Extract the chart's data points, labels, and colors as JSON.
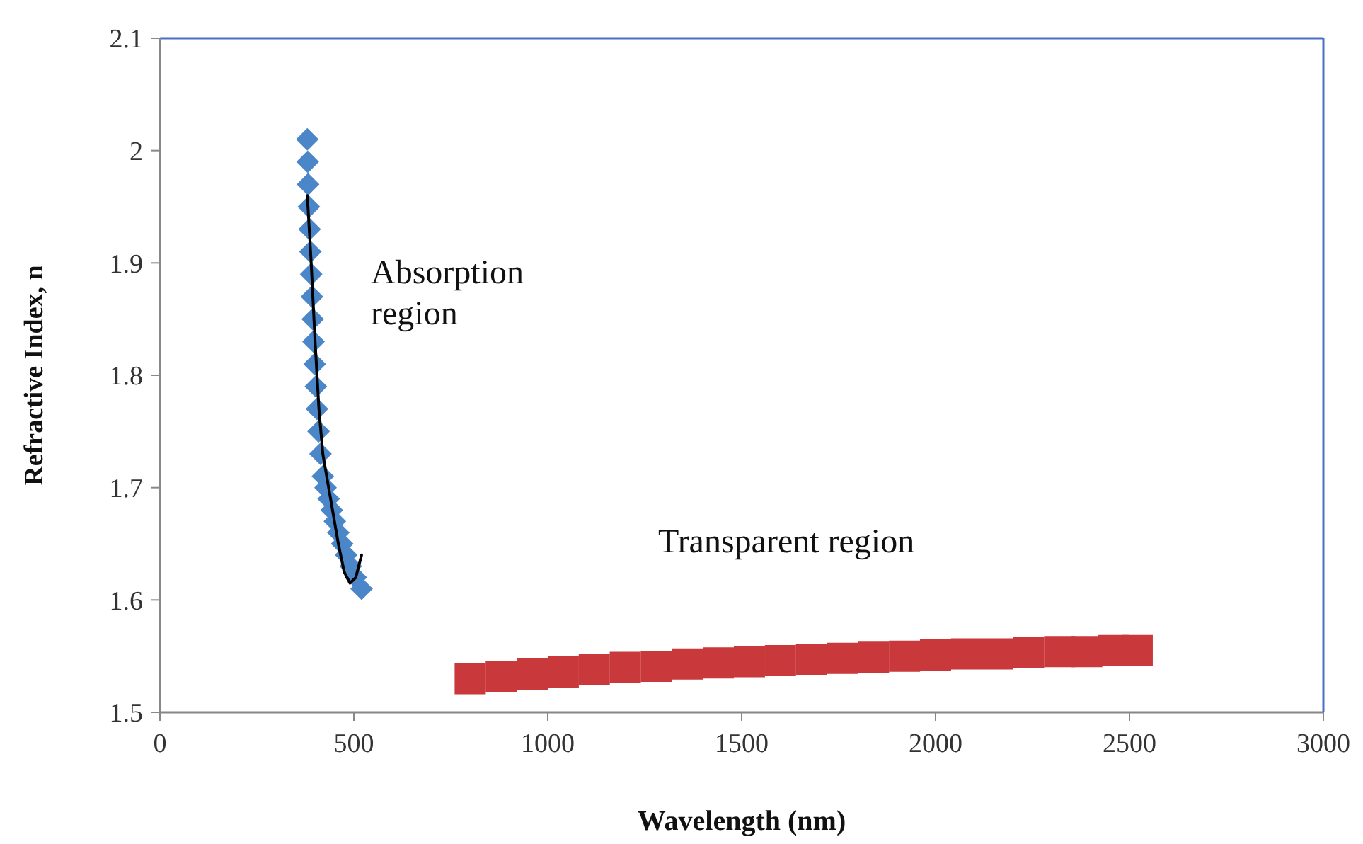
{
  "chart_data": {
    "type": "scatter",
    "xlabel": "Wavelength  (nm)",
    "ylabel": "Refractive  Index,  n",
    "xlim": [
      0,
      3000
    ],
    "xticks": [
      0,
      500,
      1000,
      1500,
      2000,
      2500,
      3000
    ],
    "ylim": [
      1.5,
      2.1
    ],
    "yticks": [
      1.5,
      1.6,
      1.7,
      1.8,
      1.9,
      2,
      2.1
    ],
    "grid": false,
    "annotations": [
      "Absorption region",
      "Transparent region"
    ],
    "series": [
      {
        "marker": "diamond",
        "color": "#4a86c8",
        "x": [
          380,
          381,
          382,
          384,
          386,
          388,
          390,
          392,
          394,
          396,
          399,
          402,
          405,
          409,
          414,
          420,
          427,
          435,
          443,
          451,
          460,
          470,
          480,
          492,
          505,
          520
        ],
        "values": [
          2.01,
          1.99,
          1.97,
          1.95,
          1.93,
          1.91,
          1.89,
          1.87,
          1.85,
          1.83,
          1.81,
          1.79,
          1.77,
          1.75,
          1.73,
          1.71,
          1.7,
          1.69,
          1.68,
          1.67,
          1.66,
          1.65,
          1.64,
          1.63,
          1.62,
          1.61
        ]
      },
      {
        "marker": "square",
        "color": "#c9383a",
        "x": [
          800,
          880,
          960,
          1040,
          1120,
          1200,
          1280,
          1360,
          1440,
          1520,
          1600,
          1680,
          1760,
          1840,
          1920,
          2000,
          2080,
          2160,
          2240,
          2320,
          2390,
          2460,
          2520
        ],
        "values": [
          1.53,
          1.532,
          1.534,
          1.536,
          1.538,
          1.54,
          1.541,
          1.543,
          1.544,
          1.545,
          1.546,
          1.547,
          1.548,
          1.549,
          1.55,
          1.551,
          1.552,
          1.552,
          1.553,
          1.554,
          1.554,
          1.555,
          1.555
        ]
      },
      {
        "type": "line",
        "marker": "none",
        "line_style": "solid",
        "color": "#000000",
        "x": [
          380,
          390,
          400,
          410,
          420,
          440,
          460,
          475,
          490,
          505,
          520
        ],
        "values": [
          1.96,
          1.9,
          1.83,
          1.77,
          1.73,
          1.69,
          1.65,
          1.625,
          1.615,
          1.62,
          1.64
        ]
      }
    ]
  }
}
